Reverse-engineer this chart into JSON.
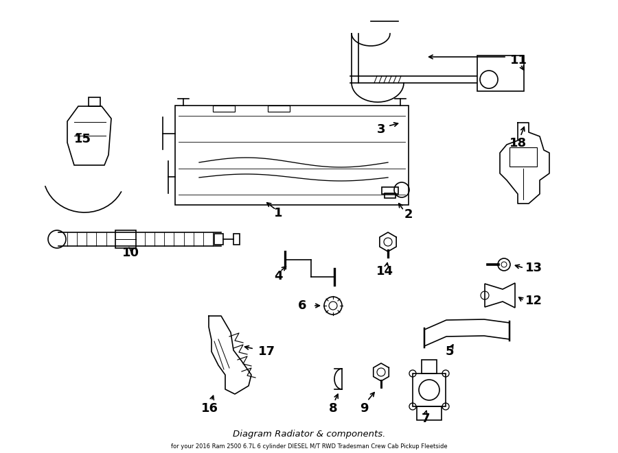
{
  "bg_color": "#ffffff",
  "line_color": "#000000",
  "title": "Diagram Radiator & components.",
  "subtitle": "for your 2016 Ram 2500 6.7L 6 cylinder DIESEL M/T RWD Tradesman Crew Cab Pickup Fleetside",
  "figsize": [
    9.0,
    6.61
  ],
  "dpi": 100
}
